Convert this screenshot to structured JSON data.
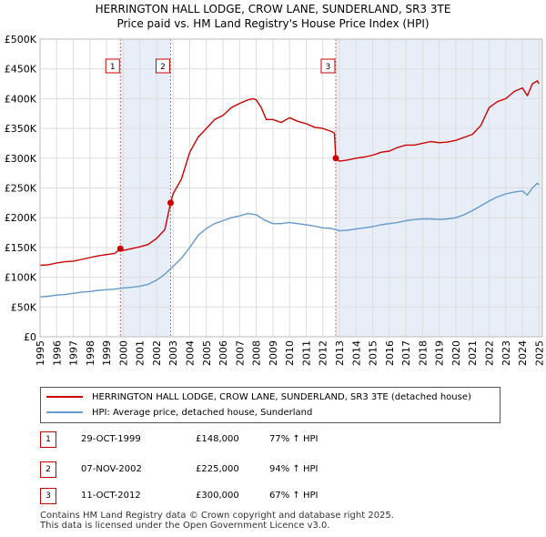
{
  "title_line1": "HERRINGTON HALL LODGE, CROW LANE, SUNDERLAND, SR3 3TE",
  "title_line2": "Price paid vs. HM Land Registry's House Price Index (HPI)",
  "colors": {
    "property": "#cc0000",
    "hpi": "#6699cc",
    "shade": "#e8eef8",
    "grid": "#dddddd",
    "vline": "#dd6666"
  },
  "chart_data": {
    "type": "line",
    "xlim": [
      1995,
      2025.2
    ],
    "ylim": [
      0,
      500000
    ],
    "y_ticks": [
      {
        "value": 0,
        "label": "£0"
      },
      {
        "value": 50000,
        "label": "£50K"
      },
      {
        "value": 100000,
        "label": "£100K"
      },
      {
        "value": 150000,
        "label": "£150K"
      },
      {
        "value": 200000,
        "label": "£200K"
      },
      {
        "value": 250000,
        "label": "£250K"
      },
      {
        "value": 300000,
        "label": "£300K"
      },
      {
        "value": 350000,
        "label": "£350K"
      },
      {
        "value": 400000,
        "label": "£400K"
      },
      {
        "value": 450000,
        "label": "£450K"
      },
      {
        "value": 500000,
        "label": "£500K"
      }
    ],
    "x_ticks": [
      "1995",
      "1996",
      "1997",
      "1998",
      "1999",
      "2000",
      "2001",
      "2002",
      "2003",
      "2004",
      "2005",
      "2006",
      "2007",
      "2008",
      "2009",
      "2010",
      "2011",
      "2012",
      "2013",
      "2014",
      "2015",
      "2016",
      "2017",
      "2018",
      "2019",
      "2020",
      "2021",
      "2022",
      "2023",
      "2024",
      "2025"
    ],
    "series": [
      {
        "name": "HERRINGTON HALL LODGE, CROW LANE, SUNDERLAND, SR3 3TE (detached house)",
        "color": "#cc0000",
        "x": [
          1995.0,
          1995.5,
          1996.0,
          1996.5,
          1997.0,
          1997.5,
          1998.0,
          1998.5,
          1999.0,
          1999.5,
          1999.83,
          2000.0,
          2000.5,
          2001.0,
          2001.5,
          2002.0,
          2002.5,
          2002.85,
          2003.0,
          2003.5,
          2004.0,
          2004.5,
          2005.0,
          2005.5,
          2006.0,
          2006.5,
          2007.0,
          2007.5,
          2007.8,
          2008.0,
          2008.3,
          2008.6,
          2009.0,
          2009.5,
          2010.0,
          2010.5,
          2011.0,
          2011.5,
          2012.0,
          2012.5,
          2012.7,
          2012.78,
          2013.0,
          2013.5,
          2014.0,
          2014.5,
          2015.0,
          2015.5,
          2016.0,
          2016.5,
          2017.0,
          2017.5,
          2018.0,
          2018.5,
          2019.0,
          2019.5,
          2020.0,
          2020.5,
          2021.0,
          2021.5,
          2022.0,
          2022.5,
          2023.0,
          2023.5,
          2024.0,
          2024.3,
          2024.6,
          2024.9,
          2025.0
        ],
        "values": [
          120000,
          121000,
          124000,
          126000,
          127000,
          130000,
          133000,
          136000,
          138000,
          140000,
          148000,
          145000,
          148000,
          151000,
          155000,
          165000,
          180000,
          225000,
          240000,
          265000,
          310000,
          335000,
          350000,
          365000,
          372000,
          385000,
          392000,
          398000,
          400000,
          398000,
          385000,
          365000,
          365000,
          360000,
          368000,
          362000,
          358000,
          352000,
          350000,
          345000,
          342000,
          300000,
          295000,
          297000,
          300000,
          302000,
          305000,
          310000,
          312000,
          318000,
          322000,
          322000,
          325000,
          328000,
          326000,
          327000,
          330000,
          335000,
          340000,
          355000,
          385000,
          395000,
          400000,
          412000,
          418000,
          405000,
          425000,
          430000,
          425000
        ]
      },
      {
        "name": "HPI: Average price, detached house, Sunderland",
        "color": "#6699cc",
        "x": [
          1995.0,
          1995.5,
          1996.0,
          1996.5,
          1997.0,
          1997.5,
          1998.0,
          1998.5,
          1999.0,
          1999.5,
          2000.0,
          2000.5,
          2001.0,
          2001.5,
          2002.0,
          2002.5,
          2003.0,
          2003.5,
          2004.0,
          2004.5,
          2005.0,
          2005.5,
          2006.0,
          2006.5,
          2007.0,
          2007.5,
          2008.0,
          2008.5,
          2009.0,
          2009.5,
          2010.0,
          2010.5,
          2011.0,
          2011.5,
          2012.0,
          2012.5,
          2013.0,
          2013.5,
          2014.0,
          2014.5,
          2015.0,
          2015.5,
          2016.0,
          2016.5,
          2017.0,
          2017.5,
          2018.0,
          2018.5,
          2019.0,
          2019.5,
          2020.0,
          2020.5,
          2021.0,
          2021.5,
          2022.0,
          2022.5,
          2023.0,
          2023.5,
          2024.0,
          2024.3,
          2024.6,
          2024.9,
          2025.0
        ],
        "values": [
          67000,
          68000,
          70000,
          71000,
          73000,
          75000,
          76000,
          78000,
          79000,
          80000,
          82000,
          83000,
          85000,
          88000,
          95000,
          105000,
          118000,
          132000,
          150000,
          170000,
          182000,
          190000,
          195000,
          200000,
          203000,
          207000,
          205000,
          196000,
          190000,
          190000,
          192000,
          190000,
          188000,
          186000,
          183000,
          182000,
          178000,
          179000,
          181000,
          183000,
          185000,
          188000,
          190000,
          192000,
          195000,
          197000,
          198000,
          198000,
          197000,
          198000,
          200000,
          205000,
          212000,
          220000,
          228000,
          235000,
          240000,
          243000,
          245000,
          238000,
          250000,
          258000,
          255000
        ]
      }
    ],
    "sales": [
      {
        "id": "1",
        "x": 1999.83,
        "value": 148000,
        "date": "29-OCT-1999",
        "price": "£148,000",
        "hpi": "77% ↑ HPI"
      },
      {
        "id": "2",
        "x": 2002.85,
        "value": 225000,
        "date": "07-NOV-2002",
        "price": "£225,000",
        "hpi": "94% ↑ HPI"
      },
      {
        "id": "3",
        "x": 2012.78,
        "value": 300000,
        "date": "11-OCT-2012",
        "price": "£300,000",
        "hpi": "67% ↑ HPI"
      }
    ],
    "shaded_ranges": [
      [
        1999.83,
        2002.85
      ],
      [
        2012.78,
        2025.2
      ]
    ]
  },
  "legend": {
    "property_label": "HERRINGTON HALL LODGE, CROW LANE, SUNDERLAND, SR3 3TE (detached house)",
    "hpi_label": "HPI: Average price, detached house, Sunderland"
  },
  "footer": {
    "line1": "Contains HM Land Registry data © Crown copyright and database right 2025.",
    "line2": "This data is licensed under the Open Government Licence v3.0."
  }
}
